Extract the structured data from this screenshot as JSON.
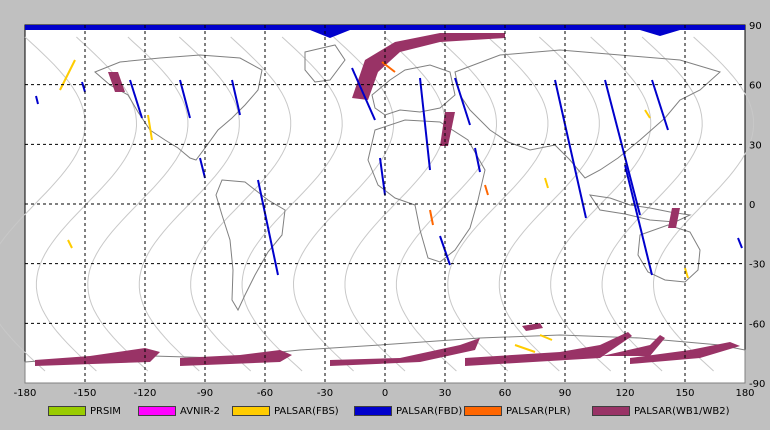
{
  "map": {
    "lon_ticks": [
      "-180",
      "-150",
      "-120",
      "-90",
      "-60",
      "-30",
      "0",
      "30",
      "60",
      "90",
      "120",
      "150",
      "180"
    ],
    "lat_ticks": [
      "90",
      "60",
      "30",
      "0",
      "-30",
      "-60",
      "-90"
    ]
  },
  "legend": [
    {
      "label": "PRSIM",
      "color": "#99cc00"
    },
    {
      "label": "AVNIR-2",
      "color": "#ff00ff"
    },
    {
      "label": "PALSAR(FBS)",
      "color": "#ffcc00"
    },
    {
      "label": "PALSAR(FBD)",
      "color": "#0000cc"
    },
    {
      "label": "PALSAR(PLR)",
      "color": "#ff6600"
    },
    {
      "label": "PALSAR(WB1/WB2)",
      "color": "#993366"
    }
  ]
}
